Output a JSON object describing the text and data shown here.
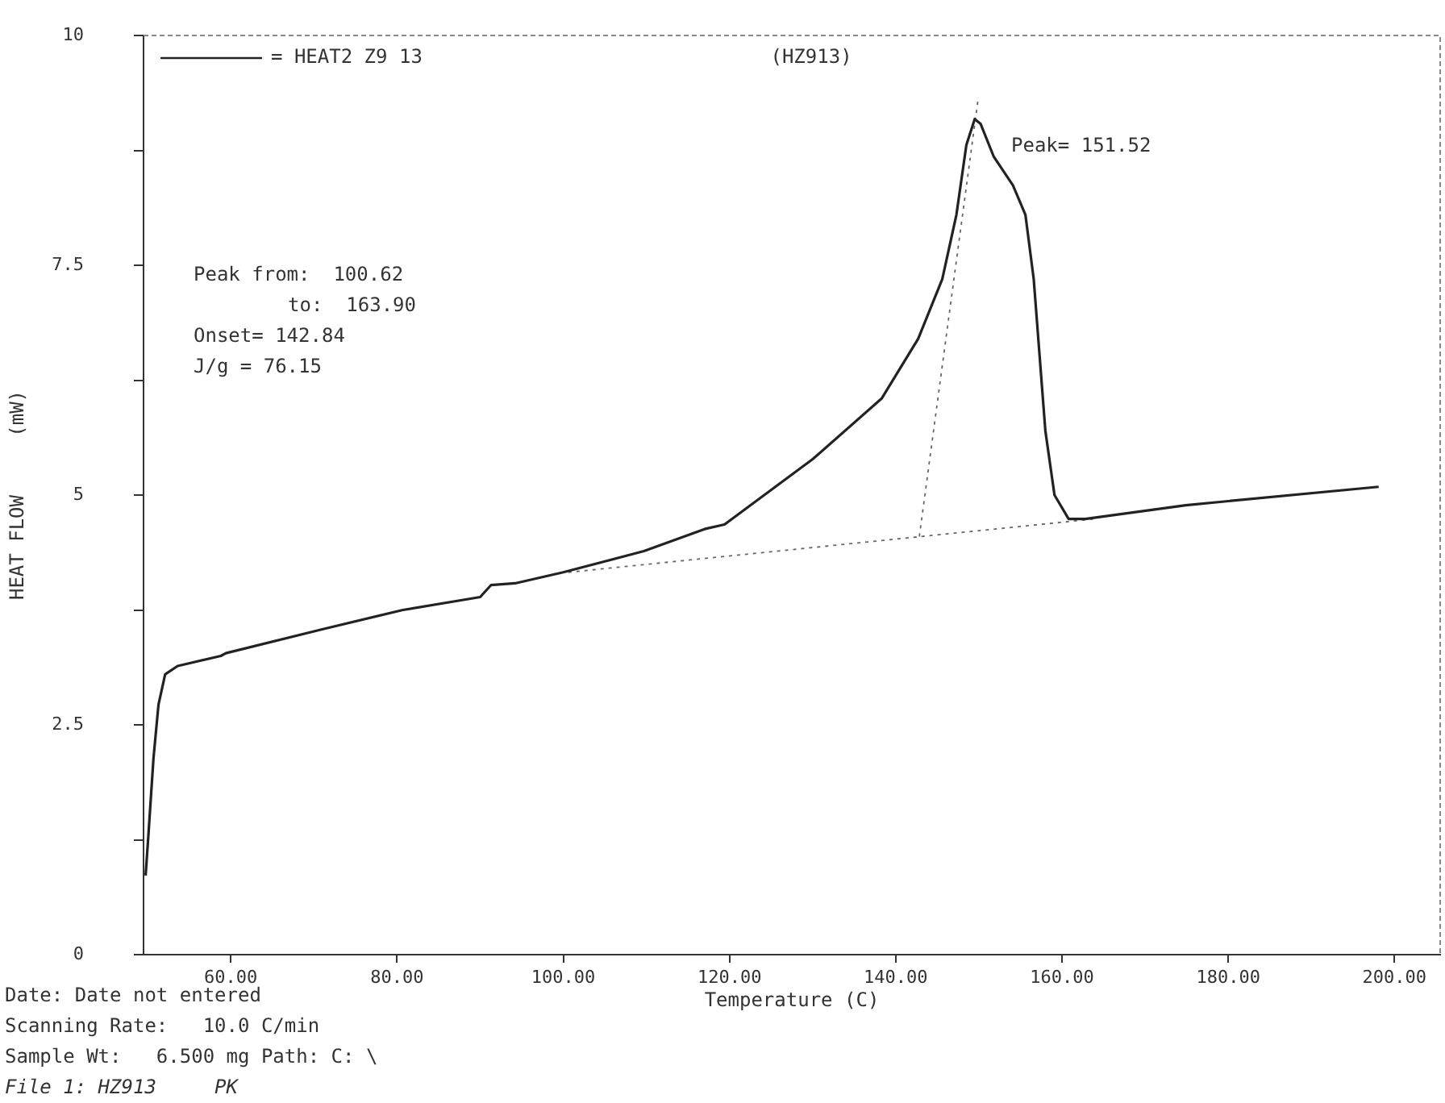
{
  "chart_data": {
    "type": "line",
    "title": "(HZ913)",
    "xlabel": "Temperature (C)",
    "ylabel": "HEAT FLOW     (mW)",
    "xlim": [
      49.5,
      205.5
    ],
    "ylim": [
      0,
      10
    ],
    "xticks": [
      {
        "value": 60,
        "label": "60.00"
      },
      {
        "value": 80,
        "label": "80.00"
      },
      {
        "value": 100,
        "label": "100.00"
      },
      {
        "value": 120,
        "label": "120.00"
      },
      {
        "value": 140,
        "label": "140.00"
      },
      {
        "value": 160,
        "label": "160.00"
      },
      {
        "value": 180,
        "label": "180.00"
      },
      {
        "value": 200,
        "label": "200.00"
      }
    ],
    "yticks": [
      0,
      {
        "value": 1.25,
        "label": null
      },
      2.5,
      {
        "value": 3.75,
        "label": null
      },
      5,
      {
        "value": 6.25,
        "label": null
      },
      7.5,
      {
        "value": 8.75,
        "label": null
      },
      10
    ],
    "grid": false,
    "legend": "top left",
    "marker": "none",
    "line_style": "solid",
    "series": [
      {
        "name": "= HEAT2 Z9 13",
        "color": "#222222",
        "x": [
          49.75,
          50.1,
          50.7,
          51.3,
          52.1,
          53.6,
          58.8,
          59.4,
          71.0,
          80.7,
          90.0,
          91.3,
          94.2,
          100.0,
          109.7,
          117.0,
          119.4,
          130.0,
          138.3,
          142.7,
          145.6,
          147.3,
          148.5,
          149.5,
          150.2,
          151.8,
          154.1,
          155.6,
          156.6,
          158.0,
          159.1,
          160.8,
          162.8,
          174.9,
          198.1
        ],
        "values": [
          0.86,
          1.32,
          2.14,
          2.72,
          3.05,
          3.14,
          3.25,
          3.28,
          3.54,
          3.75,
          3.89,
          4.02,
          4.04,
          4.16,
          4.39,
          4.63,
          4.68,
          5.39,
          6.05,
          6.7,
          7.35,
          8.05,
          8.81,
          9.09,
          9.04,
          8.68,
          8.37,
          8.05,
          7.35,
          5.7,
          5.0,
          4.74,
          4.74,
          4.89,
          5.09
        ]
      },
      {
        "color": "#666666",
        "line_style": "dotted",
        "x": [
          100.62,
          163.9
        ],
        "values": [
          4.16,
          4.74
        ]
      },
      {
        "color": "#666666",
        "line_style": "dotted",
        "x": [
          142.84,
          149.9
        ],
        "values": [
          4.55,
          9.3
        ]
      }
    ],
    "annotations": [
      "Peak from:  100.62",
      "to:  163.90",
      "Onset= 142.84",
      "J/g = 76.15",
      "Peak= 151.52",
      "Date: Date not entered",
      "Scanning Rate:   10.0 C/min",
      "Sample Wt:   6.500 mg Path: C: \\",
      "File 1: HZ913     PK"
    ]
  }
}
